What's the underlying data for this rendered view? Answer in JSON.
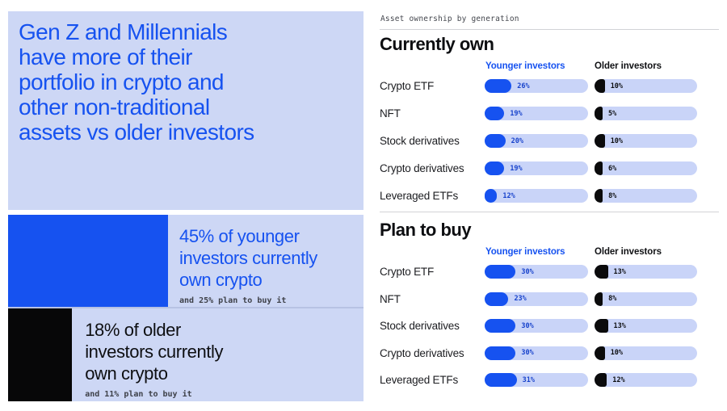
{
  "colors": {
    "accent_blue": "#1652f0",
    "panel_bg": "#cdd7f5",
    "track_bg": "#c9d4f8",
    "black_fill": "#0b0b0c",
    "pct_blue": "#1843cc",
    "divider_gray": "#d2d3d6"
  },
  "left_panel": {
    "headline": "Gen Z and Millennials\nhave more of their\nportfolio in crypto and\nother non-traditional\nassets vs older investors",
    "younger_callout": {
      "bar_percent": 45,
      "text": "45% of younger\ninvestors currently\nown crypto",
      "subtext": "and 25% plan to buy it"
    },
    "older_callout": {
      "bar_percent": 18,
      "text": "18% of older\ninvestors currently\nown crypto",
      "subtext": "and 11% plan to buy it"
    }
  },
  "right_panel": {
    "eyebrow": "Asset ownership by generation",
    "legend": {
      "younger": "Younger investors",
      "older": "Older investors"
    },
    "sections": [
      {
        "title": "Currently own",
        "rows": [
          {
            "label": "Crypto ETF",
            "younger": 26,
            "older": 10
          },
          {
            "label": "NFT",
            "younger": 19,
            "older": 5
          },
          {
            "label": "Stock derivatives",
            "younger": 20,
            "older": 10
          },
          {
            "label": "Crypto derivatives",
            "younger": 19,
            "older": 6
          },
          {
            "label": "Leveraged ETFs",
            "younger": 12,
            "older": 8
          }
        ]
      },
      {
        "title": "Plan to buy",
        "rows": [
          {
            "label": "Crypto ETF",
            "younger": 30,
            "older": 13
          },
          {
            "label": "NFT",
            "younger": 23,
            "older": 8
          },
          {
            "label": "Stock derivatives",
            "younger": 30,
            "older": 13
          },
          {
            "label": "Crypto derivatives",
            "younger": 30,
            "older": 10
          },
          {
            "label": "Leveraged ETFs",
            "younger": 31,
            "older": 12
          }
        ]
      }
    ]
  },
  "chart_data": [
    {
      "type": "bar",
      "title": "Currently own",
      "categories": [
        "Crypto ETF",
        "NFT",
        "Stock derivatives",
        "Crypto derivatives",
        "Leveraged ETFs"
      ],
      "series": [
        {
          "name": "Younger investors",
          "values": [
            26,
            19,
            20,
            19,
            12
          ]
        },
        {
          "name": "Older investors",
          "values": [
            10,
            5,
            10,
            6,
            8
          ]
        }
      ],
      "unit": "%",
      "xlim": [
        0,
        100
      ],
      "orientation": "horizontal",
      "legend_position": "top"
    },
    {
      "type": "bar",
      "title": "Plan to buy",
      "categories": [
        "Crypto ETF",
        "NFT",
        "Stock derivatives",
        "Crypto derivatives",
        "Leveraged ETFs"
      ],
      "series": [
        {
          "name": "Younger investors",
          "values": [
            30,
            23,
            30,
            30,
            31
          ]
        },
        {
          "name": "Older investors",
          "values": [
            13,
            8,
            13,
            10,
            12
          ]
        }
      ],
      "unit": "%",
      "xlim": [
        0,
        100
      ],
      "orientation": "horizontal",
      "legend_position": "top"
    },
    {
      "type": "bar",
      "title": "Crypto ownership callouts",
      "categories": [
        "Younger investors currently own crypto",
        "Older investors currently own crypto"
      ],
      "values": [
        45,
        18
      ],
      "annotations": [
        "and 25% plan to buy it",
        "and 11% plan to buy it"
      ],
      "unit": "%"
    }
  ]
}
